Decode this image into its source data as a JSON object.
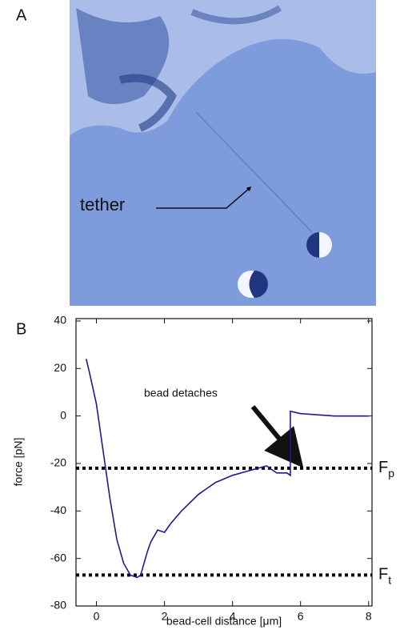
{
  "panel_a": {
    "label": "A",
    "annotation": "tether"
  },
  "chart_data": {
    "type": "line",
    "panel_label": "B",
    "xlabel": "bead-cell distance [μm]",
    "ylabel": "force [pN]",
    "x": [
      -0.3,
      -0.2,
      0,
      0.2,
      0.4,
      0.6,
      0.8,
      1.0,
      1.2,
      1.3,
      1.5,
      1.6,
      1.8,
      2.0,
      2.2,
      2.5,
      3.0,
      3.5,
      4.0,
      4.5,
      5.0,
      5.3,
      5.6,
      5.7,
      5.7,
      6.0,
      7.0,
      8.0
    ],
    "series": [
      {
        "color": "#1c1c8f",
        "values": [
          24,
          18,
          5,
          -15,
          -35,
          -52,
          -62,
          -67,
          -68,
          -67,
          -57,
          -53,
          -48,
          -49,
          -45,
          -40,
          -33,
          -28,
          -25,
          -23,
          -21,
          -24,
          -24,
          -25,
          2,
          1,
          0,
          0
        ]
      }
    ],
    "xlim": [
      -0.6,
      8.1
    ],
    "ylim": [
      -80,
      41
    ],
    "xticks": [
      0,
      2,
      4,
      6,
      8
    ],
    "yticks": [
      -80,
      -60,
      -40,
      -20,
      0,
      20,
      40
    ],
    "grid": false,
    "reference_lines": [
      {
        "value": -22,
        "label": "F",
        "subscript": "p"
      },
      {
        "value": -67,
        "label": "F",
        "subscript": "t"
      }
    ],
    "annotation": "bead detaches"
  }
}
